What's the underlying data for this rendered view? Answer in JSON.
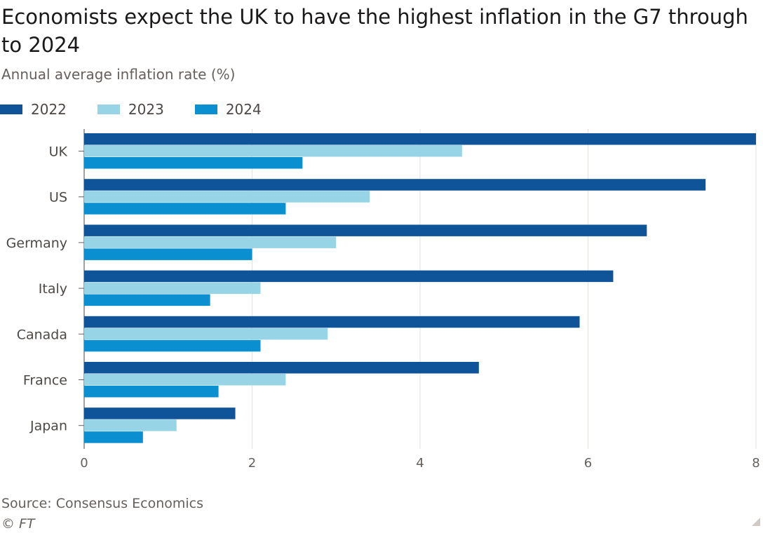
{
  "title": "Economists expect the UK to have the highest inflation in the G7 through to 2024",
  "subtitle": "Annual average inflation rate (%)",
  "source": "Source: Consensus Economics",
  "copyright": "© FT",
  "legend": [
    {
      "label": "2022",
      "color": "#0f5499"
    },
    {
      "label": "2023",
      "color": "#96d4e6"
    },
    {
      "label": "2024",
      "color": "#0a8fd0"
    }
  ],
  "chart_data": {
    "type": "bar",
    "orientation": "horizontal",
    "categories": [
      "UK",
      "US",
      "Germany",
      "Italy",
      "Canada",
      "France",
      "Japan"
    ],
    "series": [
      {
        "name": "2022",
        "color": "#0f5499",
        "values": [
          8.0,
          7.4,
          6.7,
          6.3,
          5.9,
          4.7,
          1.8
        ]
      },
      {
        "name": "2023",
        "color": "#96d4e6",
        "values": [
          4.5,
          3.4,
          3.0,
          2.1,
          2.9,
          2.4,
          1.1
        ]
      },
      {
        "name": "2024",
        "color": "#0a8fd0",
        "values": [
          2.6,
          2.4,
          2.0,
          1.5,
          2.1,
          1.6,
          0.7
        ]
      }
    ],
    "xlim": [
      0,
      8
    ],
    "xticks": [
      "0",
      "2",
      "4",
      "6",
      "8"
    ],
    "xtick_values": [
      0,
      2,
      4,
      6,
      8
    ],
    "grid": true,
    "legend_position": "top-left"
  }
}
